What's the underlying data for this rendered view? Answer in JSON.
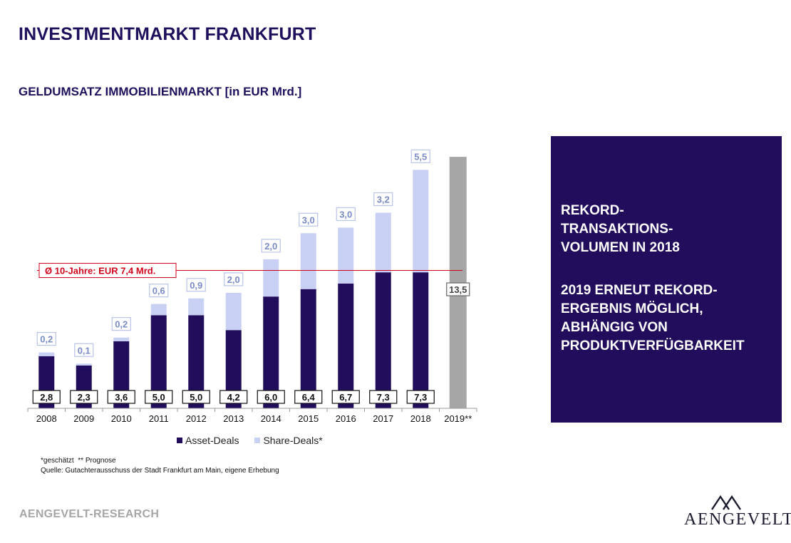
{
  "header": {
    "title": "INVESTMENTMARKT FRANKFURT",
    "subtitle": "GELDUMSATZ IMMOBILIENMARKT [in EUR Mrd.]"
  },
  "chart_data": {
    "type": "bar",
    "stacked": true,
    "categories": [
      "2008",
      "2009",
      "2010",
      "2011",
      "2012",
      "2013",
      "2014",
      "2015",
      "2016",
      "2017",
      "2018",
      "2019**"
    ],
    "series": [
      {
        "name": "Asset-Deals",
        "color": "#220d5d",
        "values": [
          2.8,
          2.3,
          3.6,
          5.0,
          5.0,
          4.2,
          6.0,
          6.4,
          6.7,
          7.3,
          7.3,
          null
        ]
      },
      {
        "name": "Share-Deals*",
        "color": "#c8d1f4",
        "values": [
          0.2,
          0.1,
          0.2,
          0.6,
          0.9,
          2.0,
          2.0,
          3.0,
          3.0,
          3.2,
          5.5,
          null
        ]
      },
      {
        "color": "#a6a6a6",
        "values": [
          null,
          null,
          null,
          null,
          null,
          null,
          null,
          null,
          null,
          null,
          null,
          13.5
        ]
      }
    ],
    "asset_labels": [
      "2,8",
      "2,3",
      "3,6",
      "5,0",
      "5,0",
      "4,2",
      "6,0",
      "6,4",
      "6,7",
      "7,3",
      "7,3",
      ""
    ],
    "share_labels": [
      "0,2",
      "0,1",
      "0,2",
      "0,6",
      "0,9",
      "2,0",
      "2,0",
      "3,0",
      "3,0",
      "3,2",
      "5,5",
      ""
    ],
    "forecast_label": "13,5",
    "average": {
      "value": 7.4,
      "label": "Ø 10-Jahre: EUR 7,4 Mrd.",
      "color": "#d0021b"
    },
    "ylim": [
      0,
      14
    ]
  },
  "legend": {
    "asset": {
      "label": "Asset-Deals",
      "color": "#220d5d"
    },
    "share": {
      "label": "Share-Deals*",
      "color": "#c8d1f4"
    }
  },
  "footnote": {
    "line1": "*geschätzt  ** Prognose",
    "line2": "Quelle: Gutachterausschuss der Stadt Frankfurt am Main, eigene Erhebung"
  },
  "info_box": {
    "text1": "REKORD-\nTRANSAKTIONS-\nVOLUMEN IN 2018",
    "text2": "2019 ERNEUT REKORD-\nERGEBNIS MÖGLICH,\nABHÄNGIG VON\nPRODUKTVERFÜGBARKEIT"
  },
  "footer": {
    "research_label": "AENGEVELT-RESEARCH",
    "logo_text": "AENGEVELT"
  }
}
